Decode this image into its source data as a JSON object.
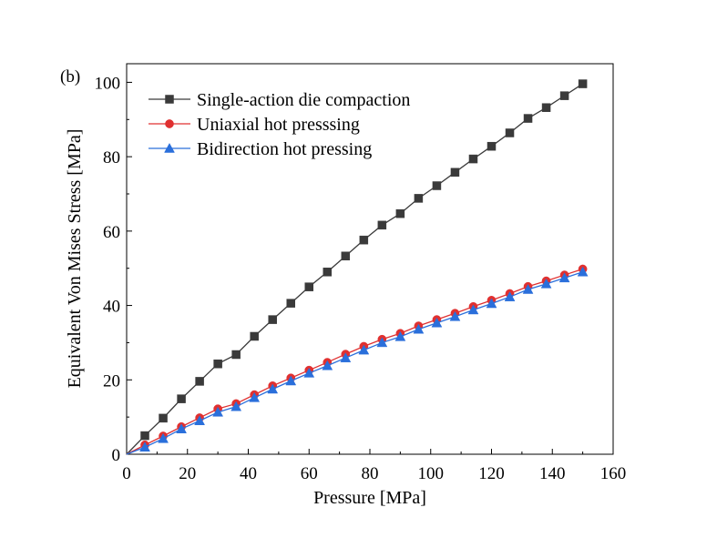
{
  "panel_label": "(b)",
  "chart_data": {
    "type": "line",
    "xlabel": "Pressure [MPa]",
    "ylabel": "Equivalent Von Mises Stress [MPa]",
    "xlim": [
      0,
      160
    ],
    "ylim": [
      0,
      105
    ],
    "xticks": [
      0,
      20,
      40,
      60,
      80,
      100,
      120,
      140,
      160
    ],
    "yticks": [
      0,
      20,
      40,
      60,
      80,
      100
    ],
    "grid": false,
    "legend_position": "top-left",
    "x": [
      0,
      6,
      12,
      18,
      24,
      30,
      36,
      42,
      48,
      54,
      60,
      66,
      72,
      78,
      84,
      90,
      96,
      102,
      108,
      114,
      120,
      126,
      132,
      138,
      144,
      150
    ],
    "series": [
      {
        "name": "Single-action die compaction",
        "color": "#3a3a3a",
        "marker": "square",
        "values": [
          0,
          5.0,
          9.7,
          14.9,
          19.6,
          24.3,
          26.8,
          31.7,
          36.2,
          40.6,
          45.0,
          49.0,
          53.3,
          57.6,
          61.6,
          64.7,
          68.8,
          72.2,
          75.8,
          79.4,
          82.8,
          86.4,
          90.3,
          93.2,
          96.4,
          99.6
        ]
      },
      {
        "name": "Uniaxial hot presssing",
        "color": "#e03030",
        "marker": "circle",
        "values": [
          0,
          2.5,
          4.9,
          7.4,
          9.8,
          12.2,
          13.6,
          16.0,
          18.4,
          20.5,
          22.6,
          24.7,
          26.9,
          29.0,
          30.9,
          32.5,
          34.5,
          36.2,
          37.9,
          39.7,
          41.4,
          43.2,
          45.1,
          46.6,
          48.2,
          49.8
        ]
      },
      {
        "name": "Bidirection hot pressing",
        "color": "#2a6fdb",
        "marker": "triangle",
        "values": [
          0,
          1.9,
          4.2,
          6.8,
          9.0,
          11.3,
          12.8,
          15.2,
          17.5,
          19.7,
          21.8,
          23.8,
          25.9,
          28.0,
          30.0,
          31.6,
          33.6,
          35.3,
          37.0,
          38.8,
          40.5,
          42.3,
          44.3,
          45.8,
          47.4,
          49.0
        ]
      }
    ]
  }
}
